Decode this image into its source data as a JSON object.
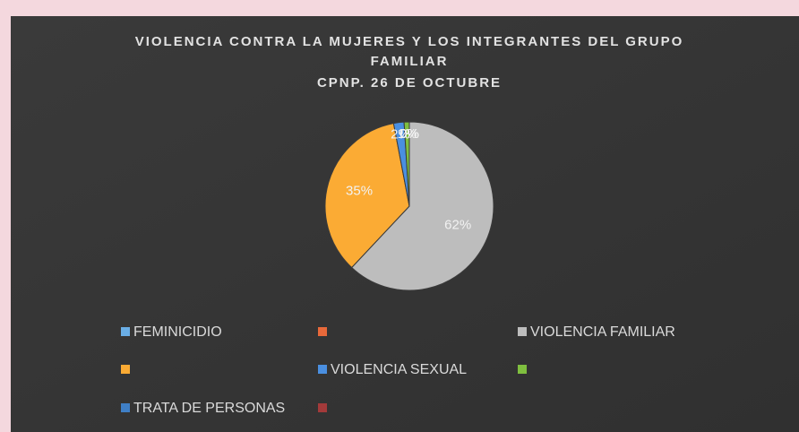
{
  "chart_data": {
    "type": "pie",
    "title": [
      "VIOLENCIA CONTRA LA MUJERES Y LOS INTEGRANTES DEL GRUPO",
      "FAMILIAR",
      "CPNP. 26 DE OCTUBRE"
    ],
    "categories": [
      "FEMINICIDIO",
      null,
      "VIOLENCIA FAMILIAR",
      null,
      "VIOLENCIA SEXUAL",
      null,
      "TRATA DE PERSONAS",
      null
    ],
    "values": [
      0,
      0,
      62,
      35,
      2,
      1,
      0,
      0
    ],
    "colors": [
      "#6aaee6",
      "#e8693a",
      "#bdbdbd",
      "#fbab34",
      "#4a8fe0",
      "#7fbf3f",
      "#3f7fc6",
      "#a33a3a"
    ],
    "legend": "bottom"
  }
}
